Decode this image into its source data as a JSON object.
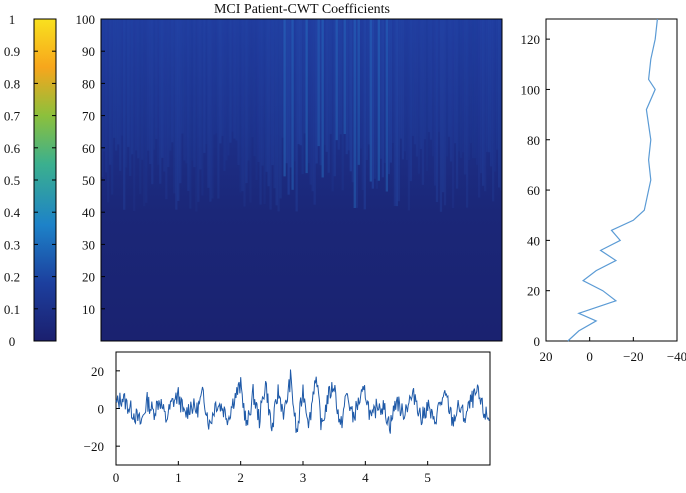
{
  "chart_data": [
    {
      "type": "heatmap",
      "title": "MCI Patient-CWT Coefficients",
      "ylim": [
        0,
        100
      ],
      "y_ticks": [
        10,
        20,
        30,
        40,
        50,
        60,
        70,
        80,
        90,
        100
      ],
      "colormap": [
        "#1b1f6e",
        "#1c3f9e",
        "#1d82c8",
        "#3bb08e",
        "#8cc03c",
        "#f7a61c",
        "#f9e11f"
      ],
      "colorbar": {
        "range": [
          0,
          1
        ],
        "ticks": [
          "0",
          "0.1",
          "0.2",
          "0.3",
          "0.4",
          "0.5",
          "0.6",
          "0.7",
          "0.8",
          "0.9",
          "1"
        ]
      },
      "description_values": {
        "dominant_level": 0.05,
        "upper_band_level": 0.2,
        "peak_level": 0.45
      }
    },
    {
      "type": "line",
      "xlim": [
        0,
        6
      ],
      "ylim": [
        -30,
        30
      ],
      "x_ticks": [
        0,
        1,
        2,
        3,
        4,
        5
      ],
      "y_ticks": [
        20,
        0,
        -20
      ],
      "series": [
        {
          "color": "#1f5aa8",
          "x": [
            0,
            0.1,
            0.2,
            0.3,
            0.4,
            0.5,
            0.6,
            0.7,
            0.8,
            0.9,
            1.0,
            1.1,
            1.2,
            1.3,
            1.4,
            1.5,
            1.6,
            1.7,
            1.8,
            1.9,
            2.0,
            2.1,
            2.2,
            2.3,
            2.4,
            2.5,
            2.6,
            2.7,
            2.8,
            2.9,
            3.0,
            3.1,
            3.2,
            3.3,
            3.4,
            3.5,
            3.6,
            3.7,
            3.8,
            3.9,
            4.0,
            4.1,
            4.2,
            4.3,
            4.4,
            4.5,
            4.6,
            4.7,
            4.8,
            4.9,
            5.0,
            5.1,
            5.2,
            5.3,
            5.4,
            5.5,
            5.6,
            5.7,
            5.8,
            5.9,
            6.0
          ],
          "y": [
            2,
            6,
            1,
            -3,
            -8,
            4,
            -2,
            5,
            -6,
            3,
            7,
            -4,
            2,
            -1,
            8,
            -9,
            3,
            1,
            -5,
            6,
            12,
            -10,
            8,
            -6,
            14,
            -12,
            9,
            -3,
            16,
            -14,
            10,
            -8,
            18,
            -10,
            6,
            13,
            -11,
            8,
            -5,
            4,
            9,
            -7,
            3,
            0,
            -9,
            5,
            -3,
            4,
            7,
            -6,
            2,
            -8,
            3,
            6,
            -7,
            1,
            -5,
            4,
            8,
            -2,
            -6
          ]
        }
      ]
    },
    {
      "type": "line",
      "xlim": [
        20,
        -40
      ],
      "ylim": [
        0,
        128
      ],
      "x_ticks": [
        "20",
        "0",
        "−20",
        "−40"
      ],
      "y_ticks": [
        0,
        20,
        40,
        60,
        80,
        100,
        120
      ],
      "series": [
        {
          "color": "#5b9bd5",
          "x": [
            10,
            5,
            -3,
            5,
            -12,
            -6,
            3,
            -3,
            -12,
            -5,
            -14,
            -10,
            -20,
            -25,
            -27,
            -28,
            -27,
            -28,
            -26,
            -30,
            -27,
            -28,
            -30,
            -31
          ],
          "y": [
            0,
            4,
            8,
            11,
            16,
            20,
            24,
            28,
            32,
            36,
            40,
            44,
            48,
            52,
            60,
            64,
            72,
            80,
            92,
            100,
            104,
            112,
            120,
            128
          ]
        }
      ]
    }
  ]
}
